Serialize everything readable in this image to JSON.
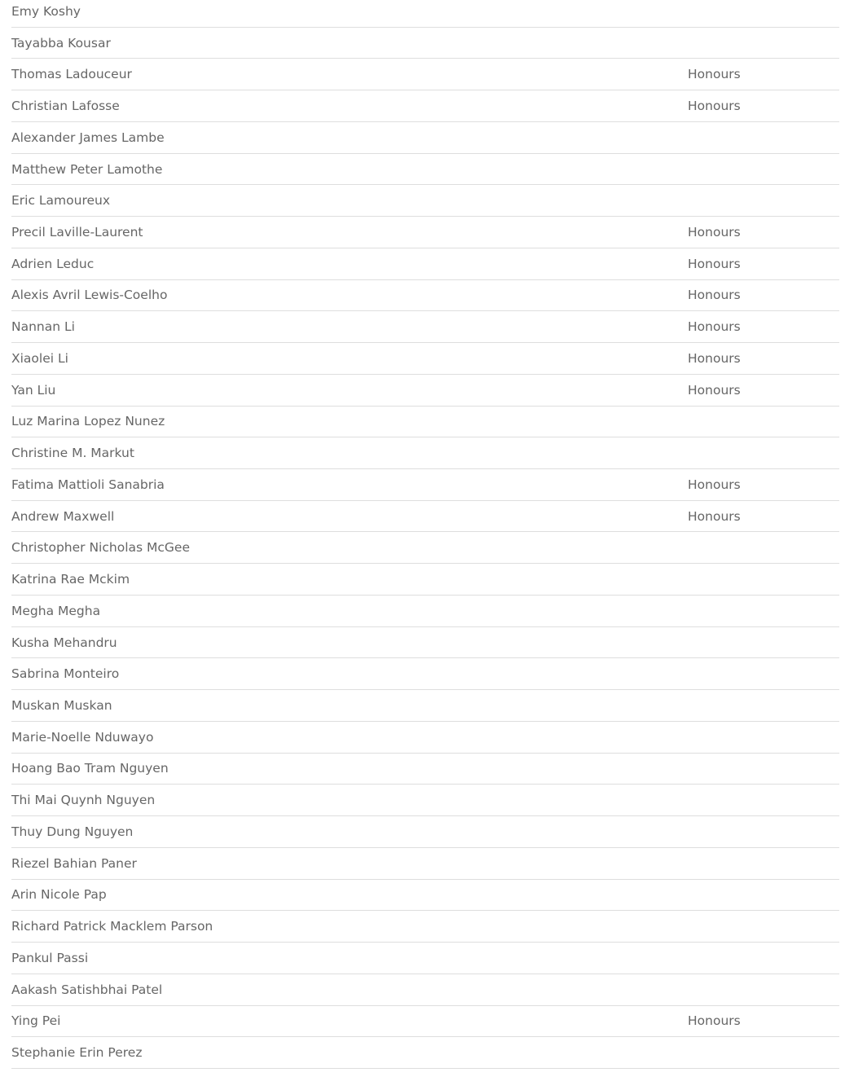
{
  "rows": [
    {
      "name": "Emy Koshy",
      "status": ""
    },
    {
      "name": "Tayabba Kousar",
      "status": ""
    },
    {
      "name": "Thomas Ladouceur",
      "status": "Honours"
    },
    {
      "name": "Christian Lafosse",
      "status": "Honours"
    },
    {
      "name": "Alexander James Lambe",
      "status": ""
    },
    {
      "name": "Matthew Peter Lamothe",
      "status": ""
    },
    {
      "name": "Eric Lamoureux",
      "status": ""
    },
    {
      "name": "Precil Laville-Laurent",
      "status": "Honours"
    },
    {
      "name": "Adrien Leduc",
      "status": "Honours"
    },
    {
      "name": "Alexis Avril Lewis-Coelho",
      "status": "Honours"
    },
    {
      "name": "Nannan Li",
      "status": "Honours"
    },
    {
      "name": "Xiaolei Li",
      "status": "Honours"
    },
    {
      "name": "Yan Liu",
      "status": "Honours"
    },
    {
      "name": "Luz Marina Lopez Nunez",
      "status": ""
    },
    {
      "name": "Christine M. Markut",
      "status": ""
    },
    {
      "name": "Fatima Mattioli Sanabria",
      "status": "Honours"
    },
    {
      "name": "Andrew Maxwell",
      "status": "Honours"
    },
    {
      "name": "Christopher Nicholas McGee",
      "status": ""
    },
    {
      "name": "Katrina Rae Mckim",
      "status": ""
    },
    {
      "name": "Megha Megha",
      "status": ""
    },
    {
      "name": "Kusha Mehandru",
      "status": ""
    },
    {
      "name": "Sabrina Monteiro",
      "status": ""
    },
    {
      "name": "Muskan Muskan",
      "status": ""
    },
    {
      "name": "Marie-Noelle Nduwayo",
      "status": ""
    },
    {
      "name": "Hoang Bao Tram Nguyen",
      "status": ""
    },
    {
      "name": "Thi Mai Quynh Nguyen",
      "status": ""
    },
    {
      "name": "Thuy Dung Nguyen",
      "status": ""
    },
    {
      "name": "Riezel Bahian Paner",
      "status": ""
    },
    {
      "name": "Arin Nicole Pap",
      "status": ""
    },
    {
      "name": "Richard Patrick Macklem Parson",
      "status": ""
    },
    {
      "name": "Pankul Passi",
      "status": ""
    },
    {
      "name": "Aakash Satishbhai Patel",
      "status": ""
    },
    {
      "name": "Ying Pei",
      "status": "Honours"
    },
    {
      "name": "Stephanie Erin Perez",
      "status": ""
    }
  ]
}
